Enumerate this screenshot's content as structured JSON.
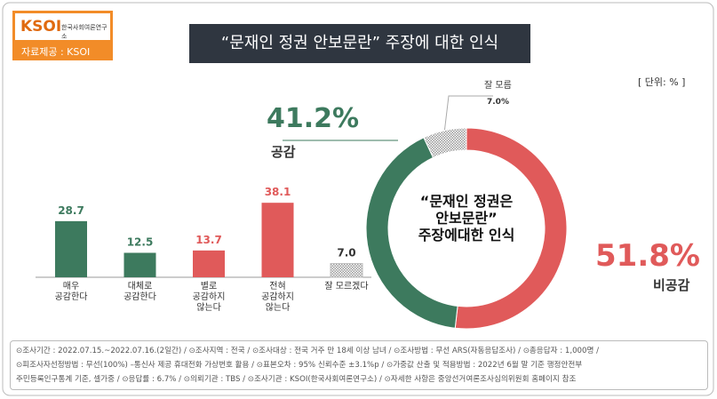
{
  "header": {
    "logo": "KSOI",
    "logo_sub": "한국사회여론연구소",
    "source": "자료제공 : KSOI",
    "title": "“문재인 정권 안보문란” 주장에 대한 인식",
    "unit": "[ 단위: % ]"
  },
  "chart_data": [
    {
      "type": "bar",
      "categories": [
        "매우\n공감한다",
        "대체로\n공감한다",
        "별로\n공감하지\n않는다",
        "전혀\n공감하지\n않는다",
        "잘 모르겠다"
      ],
      "values": [
        28.7,
        12.5,
        13.7,
        38.1,
        7.0
      ],
      "value_labels": [
        "28.7",
        "12.5",
        "13.7",
        "38.1",
        "7.0"
      ],
      "colors": [
        "#3d7a5e",
        "#3d7a5e",
        "#e05a5a",
        "#e05a5a",
        "#9e9e9e"
      ],
      "patterns": [
        "solid",
        "solid",
        "solid",
        "solid",
        "hatched"
      ]
    },
    {
      "type": "pie",
      "title": "“문재인 정권은\n안보문란”\n주장에대한 인식",
      "categories": [
        "비공감",
        "공감",
        "잘 모름"
      ],
      "values": [
        51.8,
        41.2,
        7.0
      ],
      "value_labels": [
        "51.8%",
        "41.2%",
        "7.0%"
      ],
      "colors": [
        "#e05a5a",
        "#3d7a5e",
        "#9e9e9e"
      ],
      "patterns": [
        "solid",
        "solid",
        "hatched"
      ]
    }
  ],
  "footer": {
    "lines": [
      "⊙조사기간 : 2022.07.15.~2022.07.16.(2일간) / ⊙조사지역 : 전국 / ⊙조사대상 : 전국 거주 만 18세 이상 남녀 / ⊙조사방법 : 무선 ARS(자동응답조사) / ⊙총응답자 : 1,000명 /",
      "⊙피조사자선정방법 : 무선(100%) –통신사 제공 휴대전화 가상번호 활용 / ⊙표본오차 : 95% 신뢰수준 ±3.1%p / ⊙가중값 산출 및 적용방법 : 2022년 6월 말 기준 행정안전부",
      "주민등록인구통계 기준, 셀가중 / ⊙응답률 : 6.7% / ⊙의뢰기관 : TBS / ⊙조사기관 : KSOI(한국사회여론연구소) / ⊙자세한 사항은 중앙선거여론조사심의위원회 홈페이지 참조"
    ]
  }
}
